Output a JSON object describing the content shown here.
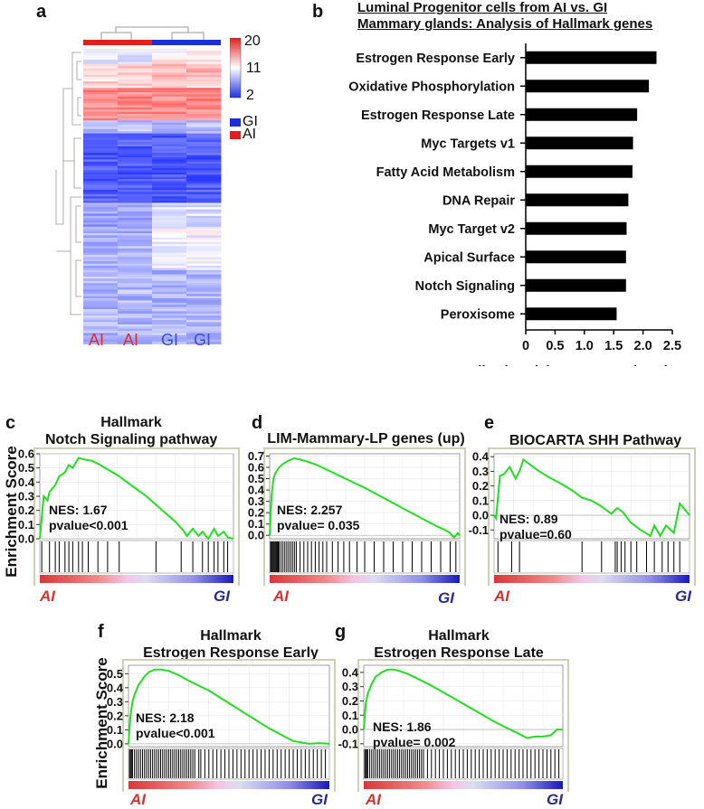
{
  "panels": {
    "a": {
      "label": "a",
      "colorbar_ticks": [
        "20",
        "11",
        "2"
      ],
      "legend": [
        {
          "label": "GI",
          "color": "#1a2fd8"
        },
        {
          "label": "AI",
          "color": "#e02020"
        }
      ],
      "columns": [
        {
          "label": "AI",
          "color": "#d93030"
        },
        {
          "label": "AI",
          "color": "#d93030"
        },
        {
          "label": "GI",
          "color": "#3a4fc8"
        },
        {
          "label": "GI",
          "color": "#3a4fc8"
        }
      ]
    },
    "b": {
      "label": "b"
    },
    "c": {
      "label": "c",
      "title_line1": "Hallmark",
      "title_line2": "Notch Signaling pathway",
      "nes": "NES: 1.67",
      "pvalue": "pvalue<0.001",
      "left": "AI",
      "right": "GI",
      "ylabel": "Enrichment Score"
    },
    "d": {
      "label": "d",
      "title_line1": "LIM-Mammary-LP genes (up)",
      "nes": "NES: 2.257",
      "pvalue": "pvalue= 0.035",
      "left": "AI",
      "right": "GI"
    },
    "e": {
      "label": "e",
      "title_line1": "BIOCARTA SHH Pathway",
      "nes": "NES: 0.89",
      "pvalue": "pvalue=0.60",
      "left": "AI",
      "right": "GI"
    },
    "f": {
      "label": "f",
      "title_line1": "Hallmark",
      "title_line2": "Estrogen Response Early",
      "nes": "NES: 2.18",
      "pvalue": "pvalue<0.001",
      "left": "AI",
      "right": "GI",
      "ylabel": "Enrichment Score"
    },
    "g": {
      "label": "g",
      "title_line1": "Hallmark",
      "title_line2": "Estrogen Response Late",
      "nes": "NES: 1.86",
      "pvalue": "pvalue= 0.002",
      "left": "AI",
      "right": "GI"
    }
  },
  "chart_data": [
    {
      "id": "b",
      "type": "bar",
      "orientation": "horizontal",
      "title": "Luminal Progenitor cells from AI vs. GI Mammary glands: Analysis of Hallmark genes",
      "title_line1": "Luminal Progenitor cells from AI vs. GI",
      "title_line2": "Mammary glands: Analysis of Hallmark genes",
      "categories": [
        "Estrogen Response Early",
        "Oxidative Phosphorylation",
        "Estrogen Response Late",
        "Myc Targets v1",
        "Fatty Acid Metabolism",
        "DNA Repair",
        "Myc Target v2",
        "Apical Surface",
        "Notch Signaling",
        "Peroxisome"
      ],
      "values": [
        2.23,
        2.1,
        1.9,
        1.83,
        1.82,
        1.75,
        1.72,
        1.71,
        1.71,
        1.55
      ],
      "xlabel": "Normalized Enrichment Score (NES)",
      "xlim": [
        0,
        2.5
      ],
      "xticks": [
        "0",
        "0.5",
        "1.0",
        "1.5",
        "2.0",
        "2.5"
      ]
    },
    {
      "id": "c",
      "type": "line",
      "title": "Hallmark Notch Signaling pathway",
      "yticks": [
        "0.6",
        "0.5",
        "0.4",
        "0.3",
        "0.2",
        "0.1",
        "0.0"
      ],
      "ylim": [
        0,
        0.6
      ],
      "x": [
        0,
        2,
        4,
        5,
        8,
        10,
        13,
        15,
        17,
        20,
        23,
        27,
        30,
        35,
        40,
        45,
        50,
        55,
        60,
        65,
        70,
        74,
        76,
        79,
        82,
        84,
        87,
        90,
        92,
        95,
        97,
        100
      ],
      "y": [
        0,
        0.3,
        0.27,
        0.33,
        0.38,
        0.44,
        0.47,
        0.52,
        0.5,
        0.57,
        0.56,
        0.55,
        0.53,
        0.49,
        0.45,
        0.4,
        0.35,
        0.3,
        0.24,
        0.18,
        0.12,
        0.06,
        0.02,
        0.07,
        0.02,
        0.05,
        0.0,
        0.07,
        0.02,
        0.05,
        0.01,
        0.0
      ],
      "hits": [
        1,
        5,
        8,
        10,
        13,
        15,
        17,
        20,
        22,
        25,
        30,
        35,
        41,
        60,
        73,
        79,
        84,
        87,
        90,
        92,
        95,
        97
      ]
    },
    {
      "id": "d",
      "type": "line",
      "title": "LIM-Mammary-LP genes (up)",
      "yticks": [
        "0.7",
        "0.6",
        "0.5",
        "0.4",
        "0.3",
        "0.2",
        "0.1",
        "0.0"
      ],
      "ylim": [
        -0.03,
        0.72
      ],
      "x": [
        0,
        1,
        2,
        3,
        5,
        7,
        10,
        13,
        16,
        20,
        25,
        30,
        40,
        50,
        60,
        70,
        80,
        88,
        92,
        95,
        97,
        99,
        100
      ],
      "y": [
        0,
        0.35,
        0.5,
        0.55,
        0.6,
        0.63,
        0.66,
        0.68,
        0.67,
        0.65,
        0.62,
        0.58,
        0.5,
        0.42,
        0.33,
        0.24,
        0.15,
        0.08,
        0.05,
        0.02,
        -0.02,
        0.02,
        0.0
      ],
      "hits": [
        0.5,
        1,
        1.5,
        2,
        2.5,
        3,
        3.5,
        4,
        4.5,
        5,
        6,
        7,
        8,
        9,
        10,
        11,
        12,
        13,
        14,
        16,
        18,
        20,
        22,
        24,
        26,
        28,
        30,
        33,
        36,
        39,
        42,
        46,
        50,
        55,
        60,
        65,
        70,
        75,
        80,
        85,
        90,
        95,
        98
      ]
    },
    {
      "id": "e",
      "type": "line",
      "title": "BIOCARTA SHH Pathway",
      "yticks": [
        "0.4",
        "0.3",
        "0.2",
        "0.1",
        "0.0",
        "-0.1"
      ],
      "ylim": [
        -0.16,
        0.42
      ],
      "x": [
        0,
        1,
        3,
        5,
        8,
        11,
        13,
        15,
        18,
        22,
        28,
        35,
        40,
        45,
        50,
        55,
        60,
        63,
        66,
        70,
        75,
        80,
        82,
        85,
        88,
        92,
        95,
        97,
        100
      ],
      "y": [
        0,
        -0.02,
        0.27,
        0.28,
        0.33,
        0.25,
        0.3,
        0.38,
        0.35,
        0.31,
        0.26,
        0.21,
        0.17,
        0.12,
        0.1,
        0.06,
        0.01,
        0.05,
        0.02,
        -0.05,
        -0.1,
        -0.14,
        -0.07,
        -0.14,
        -0.07,
        -0.12,
        0.08,
        0.05,
        0.0
      ],
      "hits": [
        2,
        9,
        13,
        45,
        55,
        62,
        63,
        65,
        67,
        70,
        73,
        78,
        82,
        86,
        89,
        92,
        95
      ]
    },
    {
      "id": "f",
      "type": "line",
      "title": "Hallmark Estrogen Response Early",
      "yticks": [
        "0.5",
        "0.4",
        "0.3",
        "0.2",
        "0.1",
        "0.0"
      ],
      "ylim": [
        -0.02,
        0.56
      ],
      "x": [
        0,
        1,
        2,
        3,
        5,
        8,
        10,
        13,
        16,
        20,
        25,
        30,
        40,
        50,
        60,
        70,
        78,
        82,
        86,
        90,
        95,
        100
      ],
      "y": [
        0,
        0.2,
        0.3,
        0.35,
        0.42,
        0.48,
        0.51,
        0.53,
        0.53,
        0.52,
        0.49,
        0.45,
        0.38,
        0.29,
        0.2,
        0.11,
        0.05,
        0.02,
        0.01,
        0.0,
        0.005,
        0.0
      ],
      "hits": [
        0.5,
        1,
        1.5,
        2,
        3,
        4,
        5,
        6,
        7,
        8,
        9,
        10,
        11,
        12,
        13,
        14,
        15,
        16,
        17,
        18,
        19,
        20,
        21,
        22,
        23,
        24,
        25,
        26,
        27,
        28,
        29,
        30,
        31,
        32,
        33,
        35,
        36,
        38,
        40,
        42,
        44,
        46,
        48,
        50,
        52,
        54,
        56,
        58,
        60,
        62,
        64,
        66,
        68,
        70,
        72,
        74,
        76,
        78,
        80,
        82,
        84,
        86,
        88,
        90,
        92,
        94,
        96,
        98
      ]
    },
    {
      "id": "g",
      "type": "line",
      "title": "Hallmark Estrogen Response Late",
      "yticks": [
        "0.4",
        "0.3",
        "0.2",
        "0.1",
        "0.0",
        "-0.1"
      ],
      "ylim": [
        -0.12,
        0.45
      ],
      "x": [
        0,
        1,
        2,
        4,
        6,
        9,
        12,
        15,
        18,
        22,
        28,
        35,
        45,
        55,
        65,
        72,
        78,
        82,
        86,
        90,
        94,
        97,
        100
      ],
      "y": [
        0,
        0.18,
        0.25,
        0.32,
        0.37,
        0.4,
        0.42,
        0.42,
        0.41,
        0.39,
        0.35,
        0.3,
        0.22,
        0.14,
        0.06,
        0.01,
        -0.03,
        -0.06,
        -0.05,
        -0.05,
        -0.04,
        0.0,
        0.0
      ],
      "hits": [
        0.5,
        1,
        1.5,
        2,
        3,
        4,
        5,
        6,
        7,
        8,
        9,
        10,
        11,
        12,
        13,
        14,
        15,
        16,
        17,
        18,
        19,
        20,
        21,
        22,
        23,
        24,
        25,
        26,
        27,
        28,
        29,
        30,
        32,
        34,
        36,
        38,
        40,
        42,
        44,
        46,
        48,
        50,
        52,
        54,
        56,
        58,
        60,
        62,
        64,
        66,
        68,
        70,
        72,
        74,
        76,
        78,
        80,
        82,
        84,
        86,
        88,
        90,
        92,
        94,
        96,
        98
      ]
    }
  ]
}
